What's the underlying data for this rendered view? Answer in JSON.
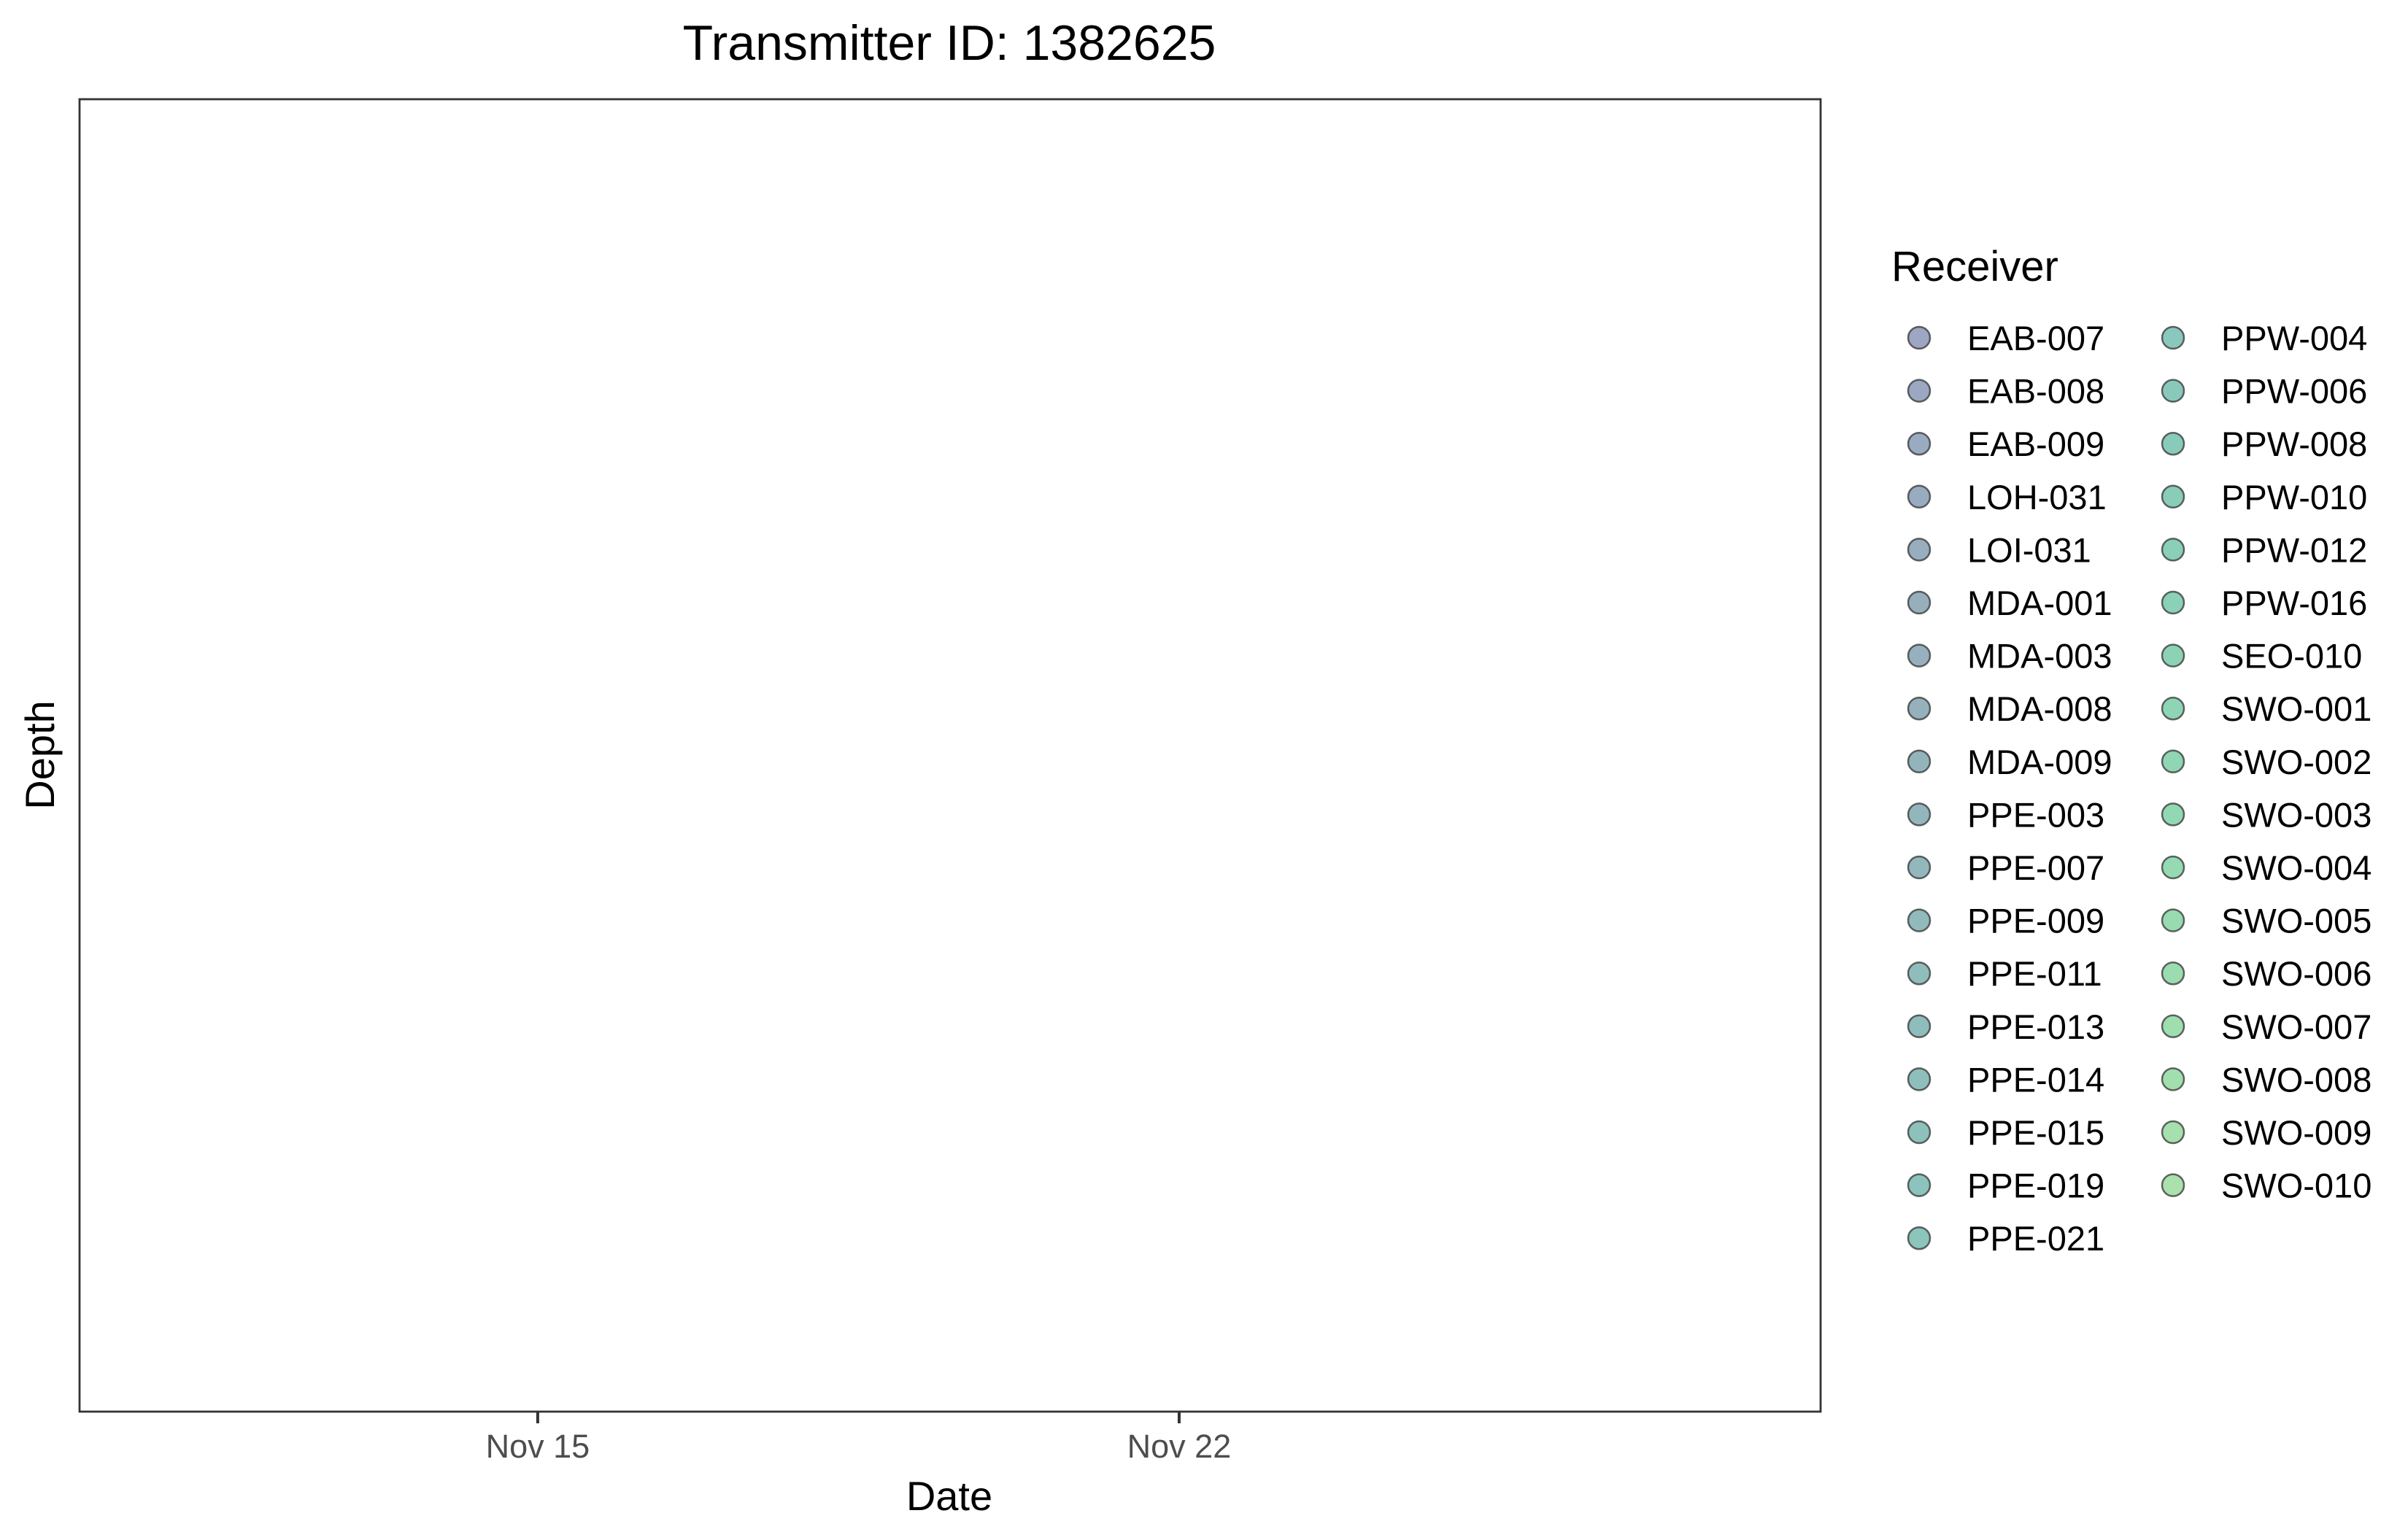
{
  "chart_data": {
    "type": "scatter",
    "title": "Transmitter ID: 1382625",
    "xlabel": "Date",
    "ylabel": "Depth",
    "x_ticks": [
      {
        "date": "2021-11-15",
        "label": "Nov 15"
      },
      {
        "date": "2021-11-22",
        "label": "Nov 22"
      }
    ],
    "x_range": [
      "2021-11-10",
      "2021-11-29"
    ],
    "y_ticks": [],
    "grid": false,
    "legend_position": "right",
    "legend": {
      "title": "Receiver",
      "columns": 2,
      "entries": [
        {
          "label": "EAB-007",
          "color": "#9da6c2"
        },
        {
          "label": "EAB-008",
          "color": "#9ca8c1"
        },
        {
          "label": "EAB-009",
          "color": "#9aaac0"
        },
        {
          "label": "LOH-031",
          "color": "#99abbf"
        },
        {
          "label": "LOI-031",
          "color": "#98adbe"
        },
        {
          "label": "MDA-001",
          "color": "#97afbd"
        },
        {
          "label": "MDA-003",
          "color": "#96b1bd"
        },
        {
          "label": "MDA-008",
          "color": "#95b2bc"
        },
        {
          "label": "MDA-009",
          "color": "#94b4bc"
        },
        {
          "label": "PPE-003",
          "color": "#93b6bc"
        },
        {
          "label": "PPE-007",
          "color": "#92b8bc"
        },
        {
          "label": "PPE-009",
          "color": "#91babc"
        },
        {
          "label": "PPE-011",
          "color": "#90bcbc"
        },
        {
          "label": "PPE-013",
          "color": "#8fbdbc"
        },
        {
          "label": "PPE-014",
          "color": "#8ebfbc"
        },
        {
          "label": "PPE-015",
          "color": "#8dc1bc"
        },
        {
          "label": "PPE-019",
          "color": "#8cc3bc"
        },
        {
          "label": "PPE-021",
          "color": "#8bc5bc"
        },
        {
          "label": "PPW-004",
          "color": "#8ac7bc"
        },
        {
          "label": "PPW-006",
          "color": "#89c9bb"
        },
        {
          "label": "PPW-008",
          "color": "#89cbba"
        },
        {
          "label": "PPW-010",
          "color": "#89cdb9"
        },
        {
          "label": "PPW-012",
          "color": "#8acfb8"
        },
        {
          "label": "PPW-016",
          "color": "#8bd1b7"
        },
        {
          "label": "SEO-010",
          "color": "#8cd3b6"
        },
        {
          "label": "SWO-001",
          "color": "#8ed5b5"
        },
        {
          "label": "SWO-002",
          "color": "#90d6b4"
        },
        {
          "label": "SWO-003",
          "color": "#92d8b3"
        },
        {
          "label": "SWO-004",
          "color": "#95dab2"
        },
        {
          "label": "SWO-005",
          "color": "#98dbb1"
        },
        {
          "label": "SWO-006",
          "color": "#9bdcb0"
        },
        {
          "label": "SWO-007",
          "color": "#9edeaf"
        },
        {
          "label": "SWO-008",
          "color": "#a2dfae"
        },
        {
          "label": "SWO-009",
          "color": "#a6e0ad"
        },
        {
          "label": "SWO-010",
          "color": "#aae1ac"
        }
      ]
    },
    "points": []
  }
}
